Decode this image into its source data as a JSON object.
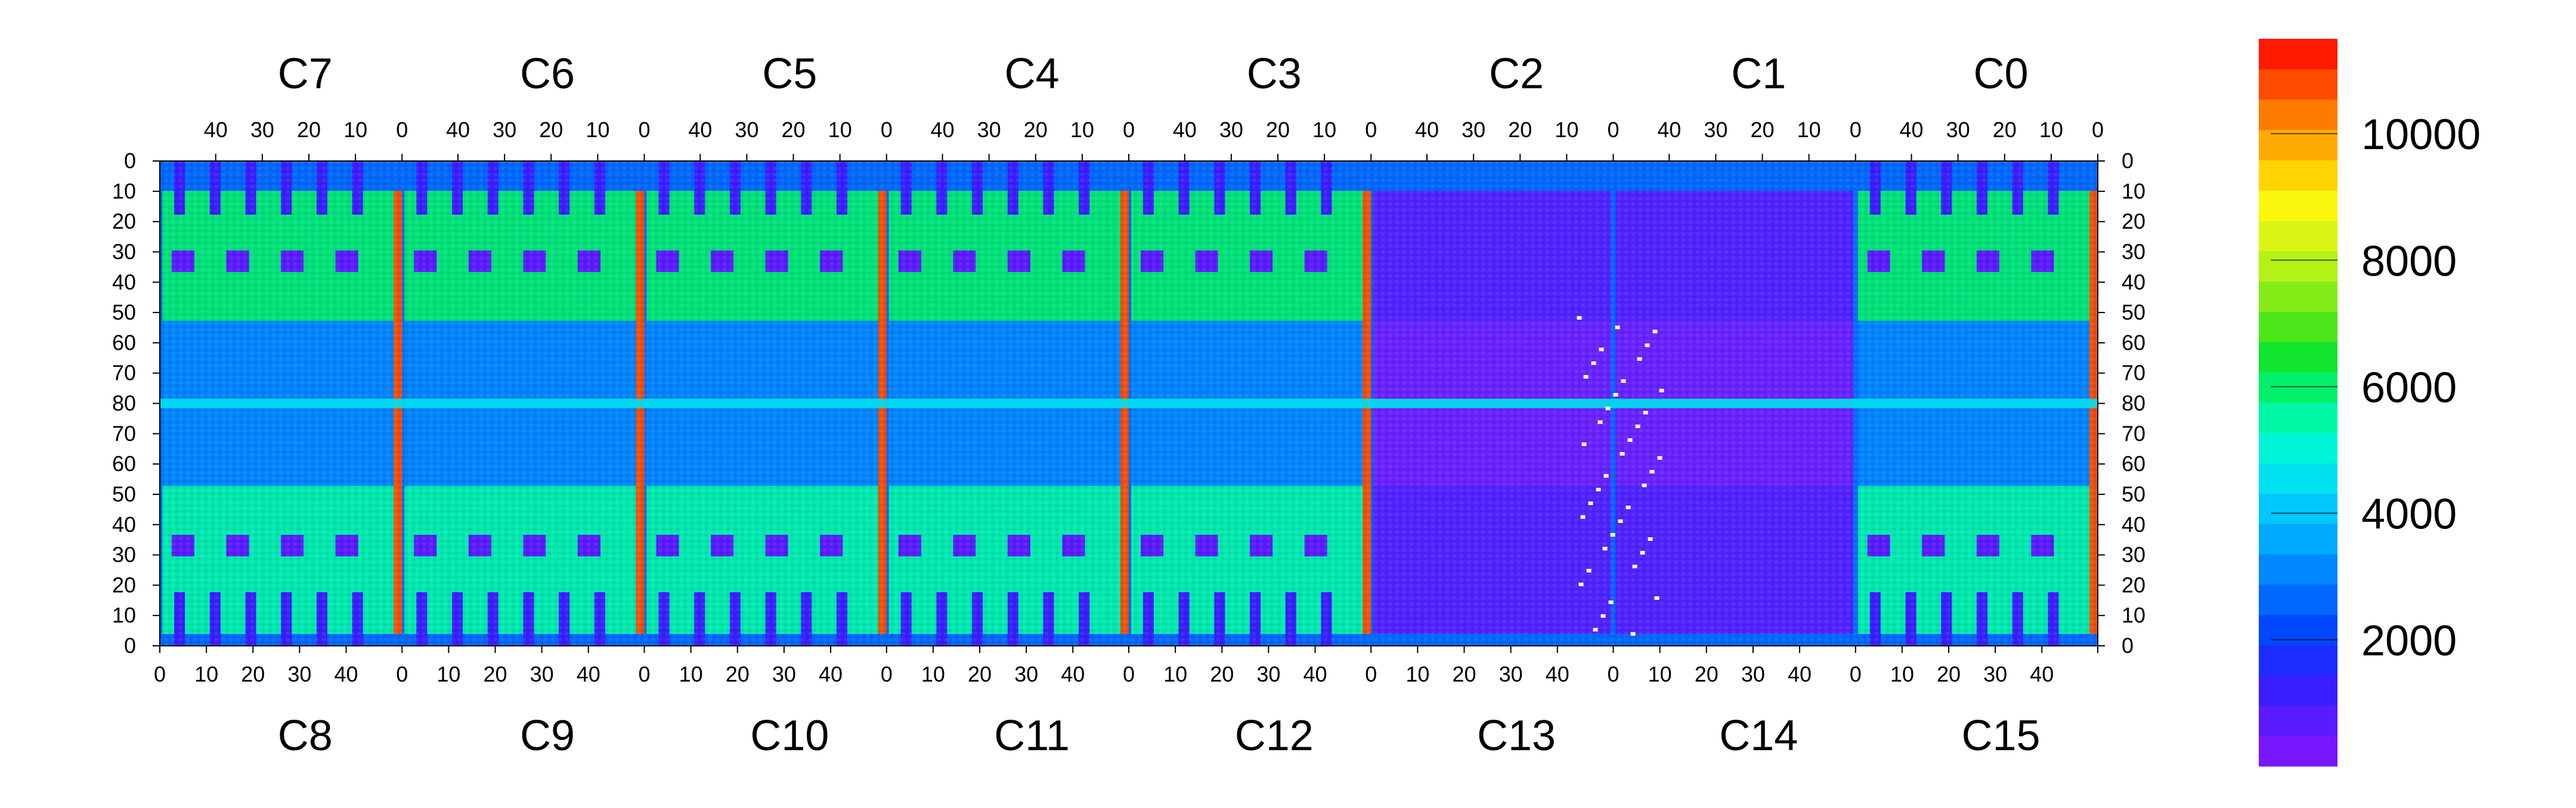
{
  "chart_data": {
    "type": "heatmap",
    "title": "",
    "xlabel": "",
    "ylabel": "",
    "top_chips": [
      "C7",
      "C6",
      "C5",
      "C4",
      "C3",
      "C2",
      "C1",
      "C0"
    ],
    "bottom_chips": [
      "C8",
      "C9",
      "C10",
      "C11",
      "C12",
      "C13",
      "C14",
      "C15"
    ],
    "chip_columns": 52,
    "chip_rows": 80,
    "top_x_ticks": [
      "40",
      "30",
      "20",
      "10",
      "0"
    ],
    "bottom_x_ticks": [
      "0",
      "10",
      "20",
      "30",
      "40"
    ],
    "y_ticks_top_half": [
      "0",
      "10",
      "20",
      "30",
      "40",
      "50",
      "60",
      "70",
      "80"
    ],
    "y_ticks_bottom_half": [
      "70",
      "60",
      "50",
      "40",
      "30",
      "20",
      "10",
      "0"
    ],
    "colorbar": {
      "min": 0,
      "max": 11500,
      "ticks": [
        "2000",
        "4000",
        "6000",
        "8000",
        "10000"
      ],
      "tick_values": [
        2000,
        4000,
        6000,
        8000,
        10000
      ],
      "palette": [
        "#7a16ff",
        "#5a1bff",
        "#3a1eff",
        "#1c2cff",
        "#0048ff",
        "#0068ff",
        "#0089ff",
        "#00aaff",
        "#00c8ff",
        "#00e1f0",
        "#00f5d6",
        "#00f7a6",
        "#00f06a",
        "#11e52d",
        "#4de61a",
        "#85ec18",
        "#b4f116",
        "#dcf514",
        "#fbf70c",
        "#ffd400",
        "#ffaa00",
        "#ff7b00",
        "#ff4a00",
        "#ff1a00"
      ]
    }
  }
}
